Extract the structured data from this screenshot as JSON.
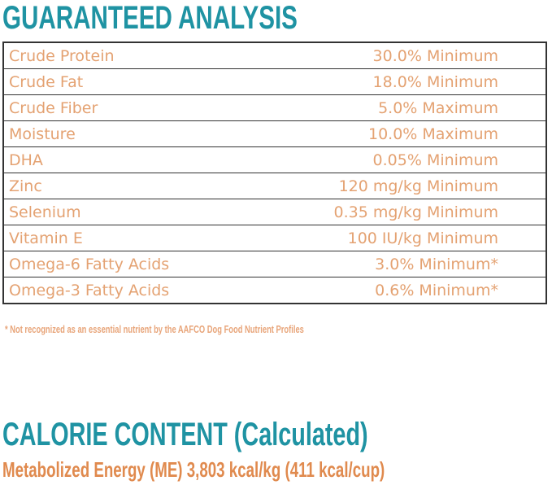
{
  "guaranteed_analysis": {
    "title": "GUARANTEED ANALYSIS",
    "rows": [
      {
        "name": "Crude Protein",
        "value": "30.0% Minimum"
      },
      {
        "name": "Crude Fat",
        "value": "18.0% Minimum"
      },
      {
        "name": "Crude Fiber",
        "value": "5.0%  Maximum"
      },
      {
        "name": "Moisture",
        "value": "10.0% Maximum"
      },
      {
        "name": "DHA",
        "value": "0.05% Minimum"
      },
      {
        "name": "Zinc",
        "value": "120 mg/kg Minimum"
      },
      {
        "name": "Selenium",
        "value": "0.35 mg/kg Minimum"
      },
      {
        "name": "Vitamin E",
        "value": "100 IU/kg Minimum"
      },
      {
        "name": "Omega-6 Fatty Acids",
        "value": "3.0% Minimum*"
      },
      {
        "name": "Omega-3 Fatty Acids",
        "value": "0.6% Minimum*"
      }
    ],
    "footnote": "* Not recognized as an essential nutrient by the AAFCO Dog Food Nutrient Profiles"
  },
  "calorie_content": {
    "title": "CALORIE CONTENT",
    "subtitle": "(Calculated)",
    "energy": "Metabolized Energy (ME) 3,803 kcal/kg (411 kcal/cup)"
  },
  "colors": {
    "heading": "#1f93a3",
    "text": "#e4a272",
    "border": "#333333"
  }
}
